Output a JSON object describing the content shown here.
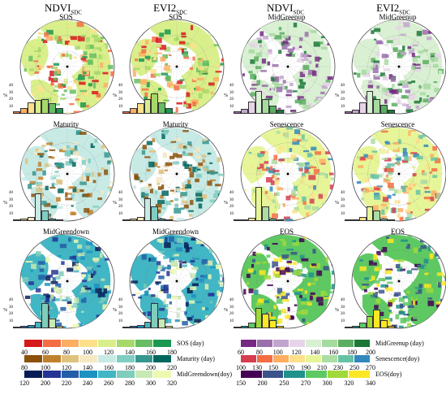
{
  "columns": [
    {
      "main": "NDVI",
      "sub": "SDC"
    },
    {
      "main": "EVI2",
      "sub": "SDC"
    },
    {
      "main": "NDVI",
      "sub": "SDC"
    },
    {
      "main": "EVI2",
      "sub": "SDC"
    }
  ],
  "panels": [
    {
      "title": "SOS",
      "legend": "sos"
    },
    {
      "title": "SOS",
      "legend": "sos"
    },
    {
      "title": "MidGreenup",
      "legend": "midgreenup"
    },
    {
      "title": "MidGreenup",
      "legend": "midgreenup"
    },
    {
      "title": "Maturity",
      "legend": "maturity"
    },
    {
      "title": "Maturity",
      "legend": "maturity"
    },
    {
      "title": "Senescence",
      "legend": "senescence"
    },
    {
      "title": "Senescence",
      "legend": "senescence"
    },
    {
      "title": "MidGreendown",
      "legend": "midgreendown"
    },
    {
      "title": "MidGreendown",
      "legend": "midgreendown"
    },
    {
      "title": "EOS",
      "legend": "eos"
    },
    {
      "title": "EOS",
      "legend": "eos"
    }
  ],
  "hist_ylabel": "%",
  "hist_ticks": [
    "10",
    "20",
    "30",
    "40"
  ],
  "histograms": [
    [
      3,
      8,
      17,
      20,
      22,
      15,
      8
    ],
    [
      3,
      8,
      16,
      21,
      30,
      17,
      8
    ],
    [
      3,
      7,
      18,
      33,
      21,
      12,
      6
    ],
    [
      3,
      6,
      17,
      33,
      22,
      13,
      6
    ],
    [
      2,
      3,
      6,
      40,
      16,
      3,
      1
    ],
    [
      2,
      3,
      6,
      33,
      22,
      3,
      1
    ],
    [
      1,
      2,
      5,
      50,
      22,
      3,
      1
    ],
    [
      1,
      2,
      6,
      22,
      15,
      3,
      1
    ],
    [
      1,
      3,
      5,
      9,
      37,
      14,
      3
    ],
    [
      1,
      3,
      5,
      9,
      37,
      14,
      3
    ],
    [
      1,
      3,
      8,
      30,
      22,
      12,
      3
    ],
    [
      1,
      3,
      8,
      18,
      27,
      12,
      3
    ]
  ],
  "legends": {
    "sos": {
      "title": "SOS (day)",
      "ticks": [
        "40",
        "60",
        "80",
        "100",
        "120",
        "140",
        "160",
        "180"
      ],
      "colors": [
        "#d7191c",
        "#f46d43",
        "#fdae61",
        "#fee08b",
        "#d9ef8b",
        "#a6d96a",
        "#66bd63",
        "#1a9850"
      ]
    },
    "maturity": {
      "title": "Maturity (day)",
      "ticks": [
        "80",
        "100",
        "120",
        "140",
        "160",
        "180",
        "200",
        "220"
      ],
      "colors": [
        "#8c510a",
        "#bf812d",
        "#dfc27d",
        "#f6e8c3",
        "#c7eae5",
        "#80cdc1",
        "#35978f",
        "#01665e"
      ]
    },
    "midgreendown": {
      "title": "MidGreendown(doy)",
      "ticks": [
        "120",
        "200",
        "220",
        "240",
        "260",
        "280",
        "300",
        "320"
      ],
      "colors": [
        "#081d58",
        "#253494",
        "#225ea8",
        "#1d91c0",
        "#41b6c4",
        "#7fcdbb",
        "#c7e9b4",
        "#edf8b1"
      ]
    },
    "midgreenup": {
      "title": "MidGreenup (day)",
      "ticks": [
        "60",
        "80",
        "100",
        "120",
        "140",
        "160",
        "180",
        "200"
      ],
      "colors": [
        "#762a83",
        "#9970ab",
        "#c2a5cf",
        "#e7d4e8",
        "#d9f0d3",
        "#a6dba0",
        "#5aae61",
        "#1b7837"
      ]
    },
    "senescence": {
      "title": "Senescence(doy)",
      "ticks": [
        "100",
        "130",
        "150",
        "170",
        "190",
        "210",
        "230",
        "250",
        "270"
      ],
      "colors": [
        "#d53e4f",
        "#f46d43",
        "#fdae61",
        "#fee08b",
        "#e6f598",
        "#abdda4",
        "#66c2a5",
        "#3288bd"
      ]
    },
    "eos": {
      "title": "EOS(doy)",
      "ticks": [
        "150",
        "200",
        "250",
        "270",
        "300",
        "320",
        "340"
      ],
      "colors": [
        "#440154",
        "#3b528b",
        "#21918c",
        "#5ec962",
        "#9fd93a",
        "#fde725"
      ]
    }
  }
}
